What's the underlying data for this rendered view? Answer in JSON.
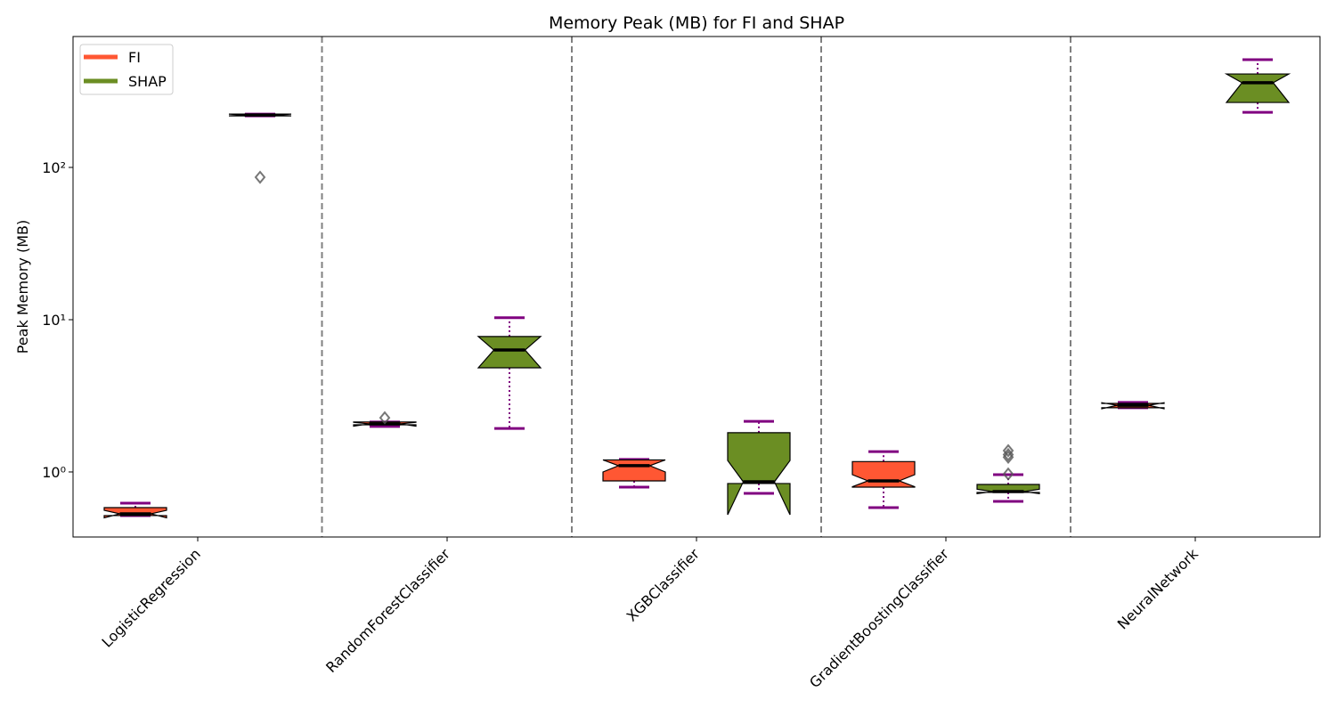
{
  "chart_data": {
    "type": "box",
    "title": "Memory Peak (MB) for FI and SHAP",
    "y_label": "Peak Memory (MB)",
    "categories": [
      "LogisticRegression",
      "RandomForestClassifier",
      "XGBClassifier",
      "GradientBoostingClassifier",
      "NeuralNetwork"
    ],
    "log_y": true,
    "ylim": [
      0.374,
      724
    ],
    "yticks": [
      {
        "value": 1,
        "label": "10⁰"
      },
      {
        "value": 10,
        "label": "10¹"
      },
      {
        "value": 100,
        "label": "10²"
      }
    ],
    "legend": "upper left",
    "notch": true,
    "whisker_color": "#800080",
    "median_color": "#000000",
    "flier_color": "#555555",
    "series": [
      {
        "name": "FI",
        "color": "#ff5733",
        "boxes": [
          {
            "whislo": 0.517,
            "q1": 0.517,
            "med": 0.531,
            "q3": 0.583,
            "whishi": 0.624,
            "cilo": 0.5,
            "cihi": 0.56,
            "fliers": []
          },
          {
            "whislo": 1.99,
            "q1": 2.04,
            "med": 2.07,
            "q3": 2.13,
            "whishi": 2.13,
            "cilo": 2.0,
            "cihi": 2.12,
            "fliers": [
              2.27
            ]
          },
          {
            "whislo": 0.795,
            "q1": 0.874,
            "med": 1.1,
            "q3": 1.2,
            "whishi": 1.21,
            "cilo": 1.0,
            "cihi": 1.2,
            "fliers": []
          },
          {
            "whislo": 0.583,
            "q1": 0.795,
            "med": 0.874,
            "q3": 1.17,
            "whishi": 1.36,
            "cilo": 0.8,
            "cihi": 0.96,
            "fliers": []
          },
          {
            "whislo": 2.64,
            "q1": 2.64,
            "med": 2.74,
            "q3": 2.82,
            "whishi": 2.86,
            "cilo": 2.6,
            "cihi": 2.85,
            "fliers": []
          }
        ]
      },
      {
        "name": "SHAP",
        "color": "#6b8e23",
        "boxes": [
          {
            "whislo": 218,
            "q1": 218,
            "med": 221,
            "q3": 224,
            "whishi": 224,
            "cilo": 218,
            "cihi": 224,
            "fliers": [
              86.2
            ]
          },
          {
            "whislo": 1.93,
            "q1": 4.83,
            "med": 6.32,
            "q3": 7.75,
            "whishi": 10.3,
            "cilo": 4.83,
            "cihi": 7.75,
            "fliers": []
          },
          {
            "whislo": 0.724,
            "q1": 0.84,
            "med": 0.862,
            "q3": 1.81,
            "whishi": 2.15,
            "cilo": 0.524,
            "cihi": 1.19,
            "fliers": []
          },
          {
            "whislo": 0.641,
            "q1": 0.734,
            "med": 0.743,
            "q3": 0.828,
            "whishi": 0.96,
            "cilo": 0.72,
            "cihi": 0.77,
            "fliers": [
              1.38,
              1.3,
              1.25,
              0.97
            ]
          },
          {
            "whislo": 230,
            "q1": 267,
            "med": 360,
            "q3": 411,
            "whishi": 510,
            "cilo": 267,
            "cihi": 411,
            "fliers": []
          }
        ]
      }
    ]
  }
}
